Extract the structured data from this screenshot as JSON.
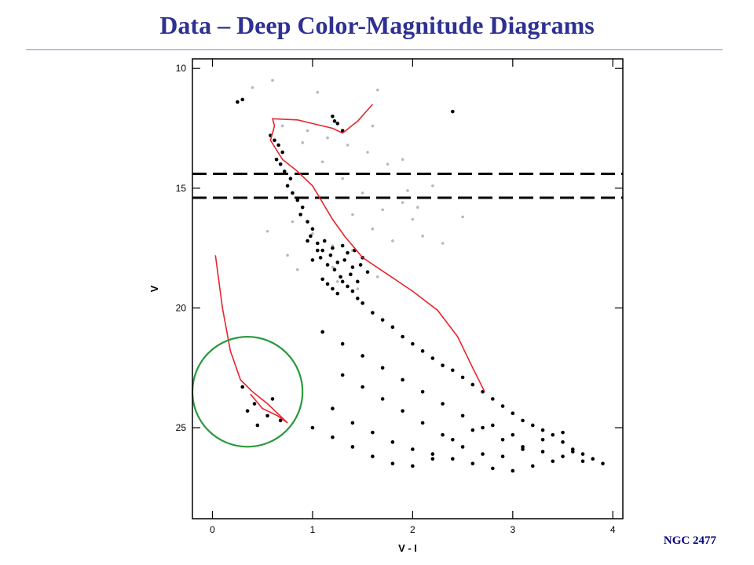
{
  "slide": {
    "title": "Data – Deep Color-Magnitude Diagrams",
    "corner_label": "NGC 2477"
  },
  "colors": {
    "title": "#2e3192",
    "isochrone": "#e8242c",
    "circle": "#2a9a3c",
    "points_primary": "#000000",
    "points_secondary": "#b8b8b8",
    "dashed_lines": "#000000"
  },
  "chart_data": {
    "type": "scatter",
    "title": "",
    "xlabel": "V - I",
    "ylabel": "V",
    "xlim": [
      -0.2,
      4.1
    ],
    "ylim": [
      28.8,
      9.6
    ],
    "y_inverted": true,
    "xticks": [
      0,
      1,
      2,
      3,
      4
    ],
    "yticks": [
      10,
      15,
      20,
      25
    ],
    "grid": false,
    "horizontal_dashed_lines_V": [
      14.4,
      15.4
    ],
    "isochrone": [
      [
        1.6,
        11.5
      ],
      [
        1.45,
        12.2
      ],
      [
        1.3,
        12.7
      ],
      [
        1.2,
        12.5
      ],
      [
        1.0,
        12.3
      ],
      [
        0.85,
        12.15
      ],
      [
        0.6,
        12.1
      ],
      [
        0.62,
        12.4
      ],
      [
        0.58,
        13.0
      ],
      [
        0.7,
        13.8
      ],
      [
        0.85,
        14.3
      ],
      [
        1.0,
        14.9
      ],
      [
        1.1,
        15.6
      ],
      [
        1.2,
        16.3
      ],
      [
        1.32,
        17.0
      ],
      [
        1.5,
        17.9
      ],
      [
        1.75,
        18.6
      ],
      [
        2.0,
        19.3
      ],
      [
        2.25,
        20.1
      ],
      [
        2.45,
        21.2
      ],
      [
        2.6,
        22.5
      ],
      [
        2.72,
        23.5
      ]
    ],
    "white_dwarf_sequence": [
      [
        0.03,
        17.8
      ],
      [
        0.1,
        20.0
      ],
      [
        0.18,
        21.8
      ],
      [
        0.28,
        23.0
      ],
      [
        0.4,
        23.5
      ],
      [
        0.55,
        24.0
      ],
      [
        0.75,
        24.8
      ],
      [
        0.65,
        24.5
      ],
      [
        0.5,
        24.2
      ],
      [
        0.38,
        23.6
      ]
    ],
    "white_dwarf_circle": {
      "center": [
        0.35,
        23.5
      ],
      "radius_x": 0.55
    },
    "series": [
      {
        "marker": "black dots",
        "x": [
          0.58,
          0.62,
          0.66,
          0.7,
          0.64,
          0.68,
          0.72,
          0.78,
          0.75,
          0.8,
          0.85,
          0.9,
          0.88,
          0.95,
          1.0,
          0.98,
          1.05,
          1.1,
          1.08,
          1.15,
          1.12,
          1.2,
          1.18,
          1.25,
          1.22,
          1.28,
          1.3,
          1.35,
          1.32,
          1.4,
          1.38,
          1.45,
          1.42,
          1.5,
          1.48,
          1.55,
          1.1,
          1.0,
          1.05,
          0.95,
          1.15,
          1.2,
          1.25,
          1.3,
          1.35,
          1.4,
          1.45,
          1.5,
          1.6,
          1.7,
          1.8,
          1.9,
          2.0,
          2.1,
          2.2,
          2.3,
          2.4,
          2.5,
          2.6,
          2.7,
          2.8,
          2.9,
          3.0,
          3.1,
          3.2,
          3.3,
          3.4,
          3.5,
          3.6,
          3.7,
          3.8,
          3.9,
          1.1,
          1.3,
          1.5,
          1.7,
          1.9,
          2.1,
          2.3,
          2.5,
          2.7,
          2.9,
          3.1,
          3.3,
          3.5,
          3.7,
          1.2,
          1.4,
          1.6,
          1.8,
          2.0,
          2.2,
          2.4,
          2.6,
          2.8,
          3.0,
          3.2,
          3.4,
          3.6,
          1.0,
          1.2,
          1.4,
          1.6,
          1.8,
          2.0,
          2.2,
          2.4,
          2.6,
          2.8,
          3.0,
          1.3,
          1.5,
          1.7,
          1.9,
          2.1,
          2.3,
          2.5,
          2.7,
          2.9,
          3.1,
          3.3,
          3.5,
          1.2,
          1.25,
          1.3,
          1.22,
          0.3,
          0.42,
          0.55,
          0.35,
          0.6,
          0.45,
          0.68,
          2.4,
          0.25,
          0.3
        ],
        "y": [
          12.8,
          13.0,
          13.2,
          13.5,
          13.8,
          14.0,
          14.3,
          14.6,
          14.9,
          15.2,
          15.5,
          15.8,
          16.1,
          16.4,
          16.7,
          17.0,
          17.3,
          17.6,
          17.9,
          18.2,
          17.2,
          17.5,
          17.8,
          18.1,
          18.4,
          18.7,
          17.4,
          17.7,
          18.0,
          18.3,
          18.6,
          18.9,
          17.6,
          17.9,
          18.2,
          18.5,
          18.8,
          18.0,
          17.6,
          17.2,
          19.0,
          19.2,
          19.4,
          18.9,
          19.1,
          19.3,
          19.6,
          19.8,
          20.2,
          20.5,
          20.8,
          21.2,
          21.5,
          21.8,
          22.1,
          22.4,
          22.6,
          22.9,
          23.2,
          23.5,
          23.8,
          24.1,
          24.4,
          24.7,
          24.9,
          25.1,
          25.3,
          25.6,
          25.9,
          26.1,
          26.3,
          26.5,
          21.0,
          21.5,
          22.0,
          22.5,
          23.0,
          23.5,
          24.0,
          24.5,
          25.0,
          25.5,
          25.8,
          26.0,
          26.2,
          26.4,
          24.2,
          24.8,
          25.2,
          25.6,
          25.9,
          26.1,
          26.3,
          26.5,
          26.7,
          26.8,
          26.6,
          26.4,
          26.0,
          25.0,
          25.4,
          25.8,
          26.2,
          26.5,
          26.6,
          26.3,
          25.5,
          25.1,
          24.9,
          25.3,
          22.8,
          23.3,
          23.8,
          24.3,
          24.8,
          25.3,
          25.8,
          26.1,
          26.2,
          25.9,
          25.5,
          25.2,
          12.0,
          12.3,
          12.6,
          12.2,
          23.3,
          24.0,
          24.5,
          24.3,
          23.8,
          24.9,
          24.7,
          11.8,
          11.4,
          11.3
        ]
      },
      {
        "marker": "grey dots",
        "x": [
          0.7,
          0.9,
          1.1,
          1.3,
          1.5,
          1.7,
          0.8,
          1.0,
          1.2,
          1.4,
          1.6,
          1.8,
          1.9,
          2.0,
          2.1,
          1.85,
          1.95,
          2.05,
          0.75,
          0.85,
          1.25,
          1.45,
          1.65,
          1.75,
          1.55,
          1.35,
          1.15,
          0.95,
          2.3,
          2.5,
          0.4,
          0.6,
          1.05,
          1.65,
          1.9,
          1.6,
          2.2,
          1.4,
          1.2,
          0.55
        ],
        "y": [
          12.4,
          13.1,
          13.9,
          14.6,
          15.2,
          15.9,
          16.4,
          16.9,
          17.4,
          16.1,
          16.7,
          17.2,
          15.6,
          16.3,
          17.0,
          14.4,
          15.1,
          15.8,
          17.8,
          18.4,
          18.9,
          19.2,
          18.7,
          14.0,
          13.5,
          13.2,
          12.9,
          12.6,
          17.3,
          16.2,
          10.8,
          10.5,
          11.0,
          10.9,
          13.8,
          12.4,
          14.9,
          17.6,
          18.3,
          16.8
        ]
      }
    ]
  }
}
